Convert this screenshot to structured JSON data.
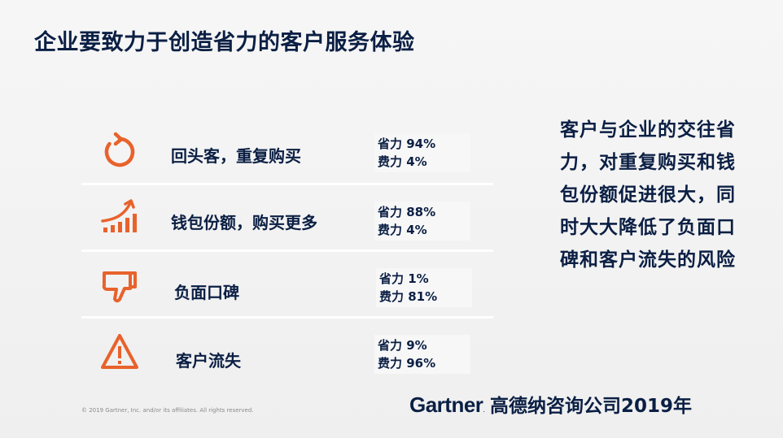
{
  "slide": {
    "title": "企业要致力于创造省力的客户服务体验",
    "rows": [
      {
        "icon": "refresh-circle-icon",
        "label": "回头客，重复购买",
        "low_effort": "省力 94%",
        "high_effort": "费力 4%"
      },
      {
        "icon": "rising-bars-icon",
        "label": "钱包份额，购买更多",
        "low_effort": "省力 88%",
        "high_effort": "费力 4%"
      },
      {
        "icon": "thumbs-down-icon",
        "label": "负面口碑",
        "low_effort": "省力 1%",
        "high_effort": "费力 81%"
      },
      {
        "icon": "warning-triangle-icon",
        "label": "客户流失",
        "low_effort": "省力 9%",
        "high_effort": "费力 96%"
      }
    ],
    "side_text": "客户与企业的交往省力，对重复购买和钱包份额促进很大，同时大大降低了负面口碑和客户流失的风险",
    "copyright": "© 2019 Gartner, Inc. and/or its affiliates. All rights reserved.",
    "brand_logo": "Gartner",
    "brand_dot": ".",
    "brand_text": "高德纳咨询公司2019年",
    "colors": {
      "accent": "#e8622c",
      "text": "#0b1f44",
      "background": "#f2f2f2"
    }
  }
}
